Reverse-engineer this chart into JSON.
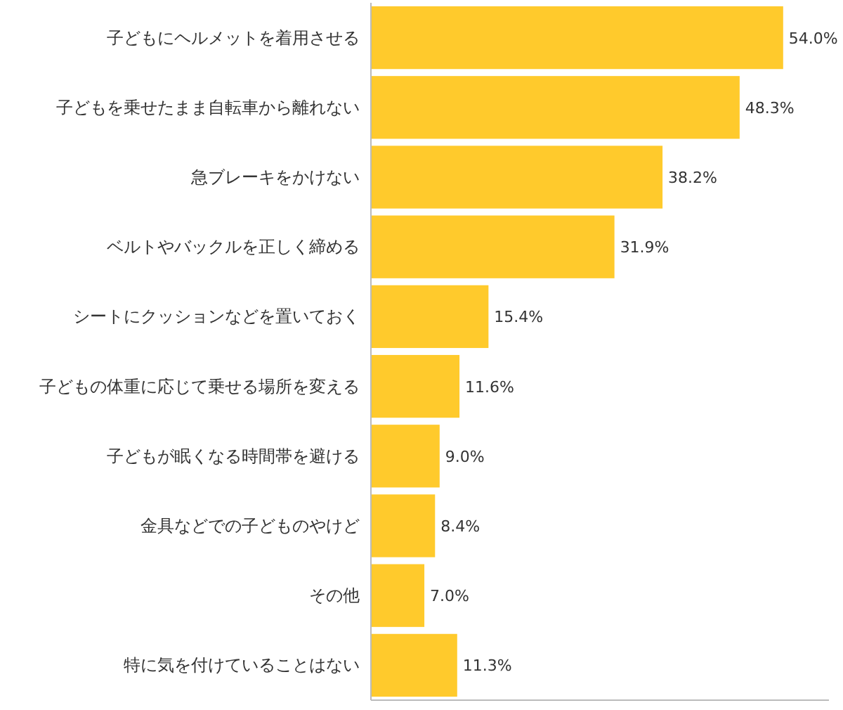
{
  "chart_data": {
    "type": "bar",
    "orientation": "horizontal",
    "categories": [
      "子どもにヘルメットを着用させる",
      "子どもを乗せたまま自転車から離れない",
      "急ブレーキをかけない",
      "ベルトやバックルを正しく締める",
      "シートにクッションなどを置いておく",
      "子どもの体重に応じて乗せる場所を変える",
      "子どもが眠くなる時間帯を避ける",
      "金具などでの子どものやけど",
      "その他",
      "特に気を付けていることはない"
    ],
    "values": [
      54.0,
      48.3,
      38.2,
      31.9,
      15.4,
      11.6,
      9.0,
      8.4,
      7.0,
      11.3
    ],
    "value_labels": [
      "54.0%",
      "48.3%",
      "38.2%",
      "31.9%",
      "15.4%",
      "11.6%",
      "9.0%",
      "8.4%",
      "7.0%",
      "11.3%"
    ],
    "color": "#ffca2c",
    "xlim": [
      0,
      60
    ],
    "tick_labels": "y"
  }
}
